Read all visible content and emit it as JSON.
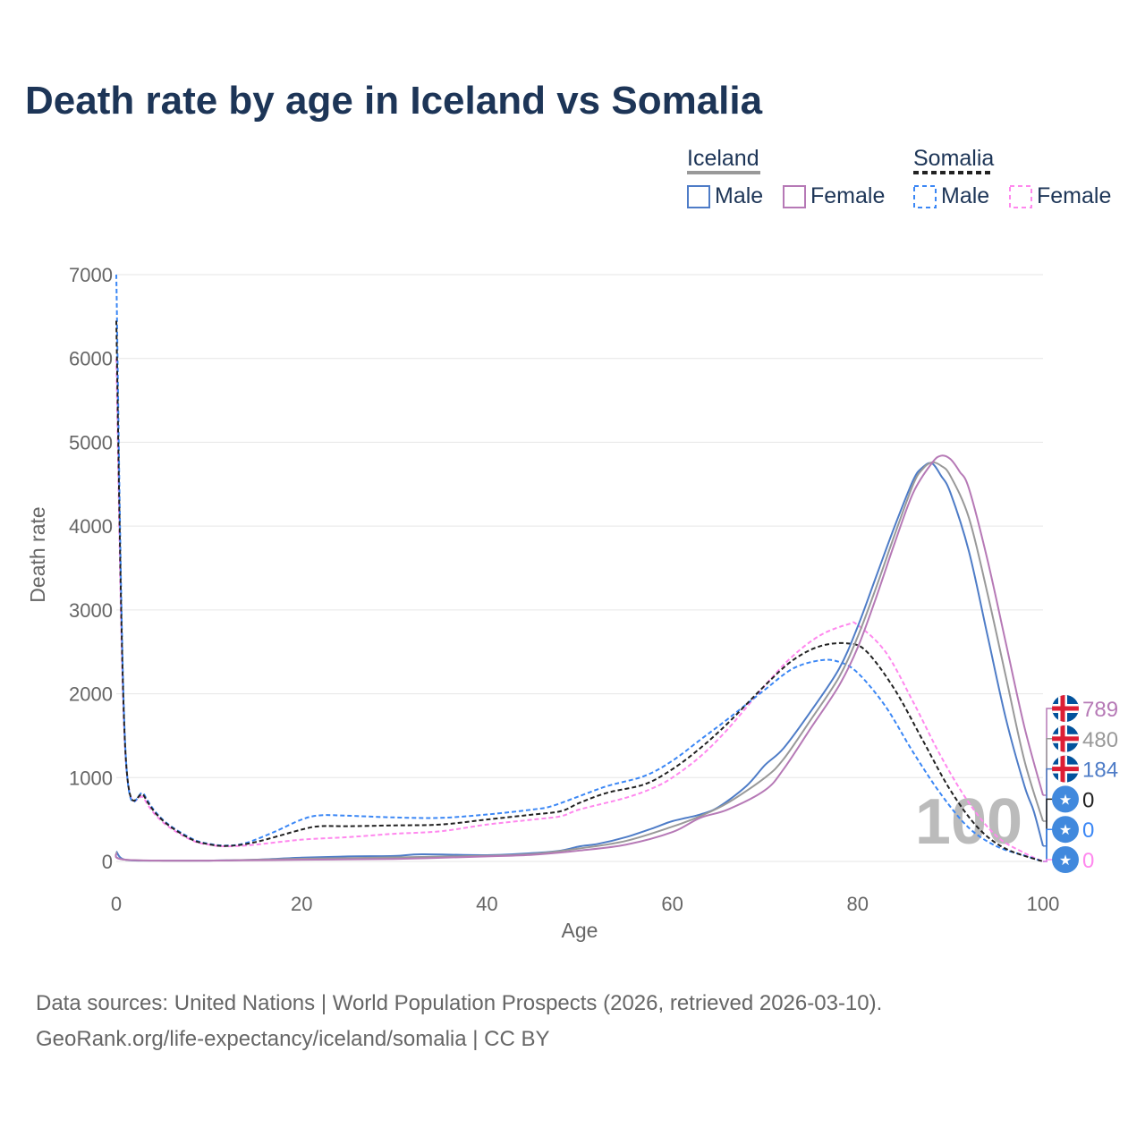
{
  "title": "Death rate by age in Iceland vs Somalia",
  "legend": {
    "groups": [
      {
        "name": "Iceland",
        "color": "#999999",
        "dash": false,
        "items": [
          {
            "label": "Male",
            "color": "#4e7cc7"
          },
          {
            "label": "Female",
            "color": "#b679b6"
          }
        ]
      },
      {
        "name": "Somalia",
        "color": "#222222",
        "dash": true,
        "items": [
          {
            "label": "Male",
            "color": "#3b87f5"
          },
          {
            "label": "Female",
            "color": "#ff88ee"
          }
        ]
      }
    ]
  },
  "sources": [
    "Data sources: United Nations | World Population Prospects (2026, retrieved 2026-03-10).",
    "GeoRank.org/life-expectancy/iceland/somalia | CC BY"
  ],
  "chart_data": {
    "type": "line",
    "title": "Death rate by age in Iceland vs Somalia",
    "xlabel": "Age",
    "ylabel": "Death rate",
    "xlim": [
      0,
      100
    ],
    "ylim": [
      0,
      7000
    ],
    "xticks": [
      0,
      20,
      40,
      60,
      80,
      100
    ],
    "yticks": [
      0,
      1000,
      2000,
      3000,
      4000,
      5000,
      6000,
      7000
    ],
    "current_age_label": "100",
    "series": [
      {
        "name": "Iceland Female",
        "color": "#b679b6",
        "dash": false,
        "end_label": "789",
        "flag": "iceland",
        "points": [
          [
            0,
            100
          ],
          [
            1,
            20
          ],
          [
            10,
            10
          ],
          [
            20,
            20
          ],
          [
            30,
            30
          ],
          [
            40,
            60
          ],
          [
            45,
            80
          ],
          [
            50,
            130
          ],
          [
            55,
            200
          ],
          [
            60,
            350
          ],
          [
            63,
            520
          ],
          [
            66,
            620
          ],
          [
            70,
            850
          ],
          [
            72,
            1100
          ],
          [
            75,
            1600
          ],
          [
            78,
            2100
          ],
          [
            80,
            2550
          ],
          [
            82,
            3150
          ],
          [
            84,
            3800
          ],
          [
            86,
            4400
          ],
          [
            88,
            4750
          ],
          [
            89,
            4840
          ],
          [
            90,
            4800
          ],
          [
            91,
            4650
          ],
          [
            92,
            4450
          ],
          [
            94,
            3600
          ],
          [
            96,
            2600
          ],
          [
            98,
            1600
          ],
          [
            100,
            789
          ]
        ]
      },
      {
        "name": "Iceland",
        "color": "#999999",
        "dash": false,
        "end_label": "480",
        "flag": "iceland",
        "points": [
          [
            0,
            110
          ],
          [
            1,
            20
          ],
          [
            10,
            10
          ],
          [
            20,
            32
          ],
          [
            30,
            48
          ],
          [
            40,
            68
          ],
          [
            45,
            90
          ],
          [
            50,
            155
          ],
          [
            55,
            245
          ],
          [
            60,
            415
          ],
          [
            63,
            540
          ],
          [
            66,
            700
          ],
          [
            70,
            1000
          ],
          [
            72,
            1220
          ],
          [
            75,
            1700
          ],
          [
            78,
            2200
          ],
          [
            80,
            2680
          ],
          [
            82,
            3270
          ],
          [
            84,
            3900
          ],
          [
            86,
            4500
          ],
          [
            87,
            4680
          ],
          [
            88,
            4760
          ],
          [
            89,
            4720
          ],
          [
            90,
            4600
          ],
          [
            92,
            4100
          ],
          [
            94,
            3200
          ],
          [
            96,
            2200
          ],
          [
            98,
            1200
          ],
          [
            100,
            480
          ]
        ]
      },
      {
        "name": "Iceland Male",
        "color": "#4e7cc7",
        "dash": false,
        "end_label": "184",
        "flag": "iceland",
        "points": [
          [
            0,
            120
          ],
          [
            1,
            20
          ],
          [
            5,
            10
          ],
          [
            10,
            10
          ],
          [
            15,
            20
          ],
          [
            20,
            45
          ],
          [
            25,
            60
          ],
          [
            30,
            65
          ],
          [
            33,
            85
          ],
          [
            40,
            75
          ],
          [
            45,
            100
          ],
          [
            48,
            130
          ],
          [
            50,
            180
          ],
          [
            52,
            210
          ],
          [
            55,
            290
          ],
          [
            58,
            400
          ],
          [
            60,
            480
          ],
          [
            63,
            560
          ],
          [
            65,
            650
          ],
          [
            68,
            900
          ],
          [
            70,
            1150
          ],
          [
            72,
            1350
          ],
          [
            75,
            1800
          ],
          [
            78,
            2300
          ],
          [
            80,
            2800
          ],
          [
            82,
            3400
          ],
          [
            84,
            4000
          ],
          [
            86,
            4550
          ],
          [
            87,
            4700
          ],
          [
            88,
            4750
          ],
          [
            89,
            4600
          ],
          [
            90,
            4400
          ],
          [
            92,
            3700
          ],
          [
            94,
            2700
          ],
          [
            96,
            1700
          ],
          [
            98,
            900
          ],
          [
            99,
            600
          ],
          [
            100,
            184
          ]
        ]
      },
      {
        "name": "Somalia",
        "color": "#222222",
        "dash": true,
        "end_label": "0",
        "flag": "somalia",
        "points": [
          [
            0,
            6450
          ],
          [
            1,
            1280
          ],
          [
            3,
            780
          ],
          [
            5,
            490
          ],
          [
            8,
            270
          ],
          [
            10,
            205
          ],
          [
            12,
            185
          ],
          [
            15,
            230
          ],
          [
            20,
            380
          ],
          [
            22,
            420
          ],
          [
            25,
            420
          ],
          [
            30,
            430
          ],
          [
            35,
            440
          ],
          [
            40,
            500
          ],
          [
            45,
            560
          ],
          [
            48,
            600
          ],
          [
            50,
            700
          ],
          [
            53,
            820
          ],
          [
            57,
            920
          ],
          [
            60,
            1100
          ],
          [
            63,
            1350
          ],
          [
            66,
            1650
          ],
          [
            70,
            2100
          ],
          [
            73,
            2400
          ],
          [
            76,
            2570
          ],
          [
            79,
            2600
          ],
          [
            81,
            2500
          ],
          [
            84,
            2050
          ],
          [
            87,
            1450
          ],
          [
            90,
            850
          ],
          [
            93,
            400
          ],
          [
            96,
            150
          ],
          [
            100,
            0
          ]
        ]
      },
      {
        "name": "Somalia Male",
        "color": "#3b87f5",
        "dash": true,
        "end_label": "0",
        "flag": "somalia",
        "points": [
          [
            0,
            7000
          ],
          [
            1,
            1300
          ],
          [
            3,
            800
          ],
          [
            5,
            500
          ],
          [
            8,
            280
          ],
          [
            10,
            210
          ],
          [
            12,
            190
          ],
          [
            14,
            220
          ],
          [
            17,
            350
          ],
          [
            20,
            500
          ],
          [
            22,
            550
          ],
          [
            25,
            545
          ],
          [
            30,
            525
          ],
          [
            35,
            520
          ],
          [
            40,
            560
          ],
          [
            45,
            620
          ],
          [
            47,
            660
          ],
          [
            50,
            780
          ],
          [
            53,
            900
          ],
          [
            57,
            1020
          ],
          [
            60,
            1200
          ],
          [
            63,
            1450
          ],
          [
            66,
            1700
          ],
          [
            70,
            2050
          ],
          [
            73,
            2300
          ],
          [
            76,
            2400
          ],
          [
            78,
            2380
          ],
          [
            80,
            2250
          ],
          [
            83,
            1850
          ],
          [
            86,
            1300
          ],
          [
            89,
            800
          ],
          [
            92,
            400
          ],
          [
            95,
            180
          ],
          [
            98,
            70
          ],
          [
            100,
            0
          ]
        ]
      },
      {
        "name": "Somalia Female",
        "color": "#ff88ee",
        "dash": true,
        "end_label": "0",
        "flag": "somalia",
        "points": [
          [
            0,
            6000
          ],
          [
            1,
            1250
          ],
          [
            3,
            750
          ],
          [
            5,
            470
          ],
          [
            8,
            260
          ],
          [
            10,
            200
          ],
          [
            12,
            180
          ],
          [
            15,
            200
          ],
          [
            20,
            260
          ],
          [
            25,
            290
          ],
          [
            30,
            330
          ],
          [
            35,
            360
          ],
          [
            40,
            440
          ],
          [
            45,
            500
          ],
          [
            48,
            540
          ],
          [
            50,
            620
          ],
          [
            55,
            760
          ],
          [
            58,
            880
          ],
          [
            60,
            1000
          ],
          [
            63,
            1250
          ],
          [
            66,
            1580
          ],
          [
            70,
            2100
          ],
          [
            73,
            2450
          ],
          [
            76,
            2700
          ],
          [
            79,
            2830
          ],
          [
            80,
            2820
          ],
          [
            83,
            2500
          ],
          [
            86,
            1900
          ],
          [
            89,
            1250
          ],
          [
            92,
            700
          ],
          [
            95,
            300
          ],
          [
            98,
            100
          ],
          [
            100,
            0
          ]
        ]
      }
    ]
  }
}
